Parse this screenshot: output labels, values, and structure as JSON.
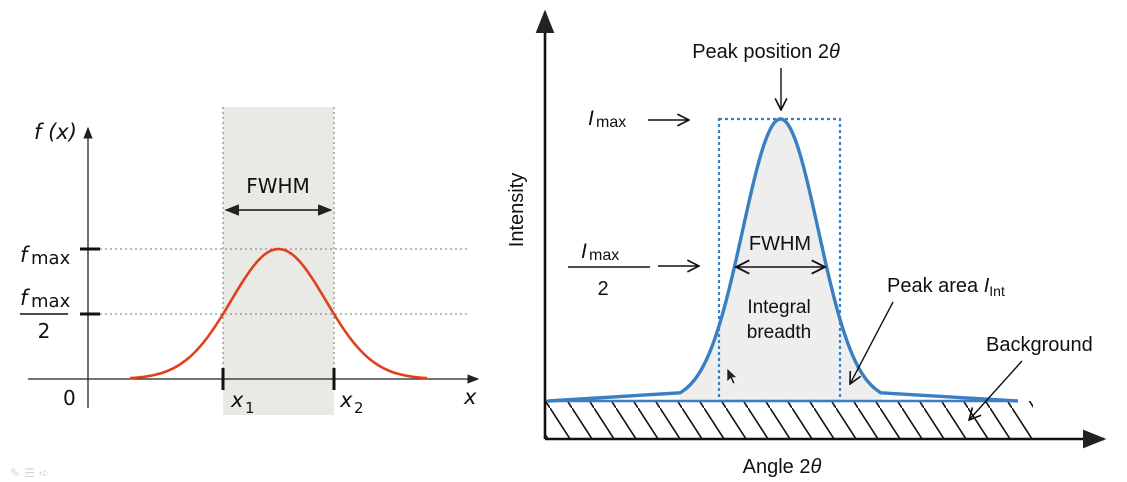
{
  "left_diagram": {
    "y_axis_label": "f (x)",
    "x_axis_label": "x",
    "origin_label": "0",
    "fmax_label": {
      "base": "f",
      "sub": "max"
    },
    "half_max_label": {
      "base": "f",
      "sub": "max",
      "denominator": "2"
    },
    "fwhm_label": "FWHM",
    "x1_label": {
      "base": "x",
      "sub": "1"
    },
    "x2_label": {
      "base": "x",
      "sub": "2"
    },
    "colors": {
      "curve": "#e0401a",
      "shade": "#e9e9e6",
      "axis": "#222222",
      "dotted": "#777777"
    }
  },
  "right_diagram": {
    "y_axis_label": "Intensity",
    "x_axis_label": {
      "text": "Angle 2",
      "symbol": "θ"
    },
    "peak_position_label": {
      "text": "Peak position 2",
      "symbol": "θ"
    },
    "imax_label": {
      "base": "I",
      "sub": "max"
    },
    "half_imax_label": {
      "base": "I",
      "sub": "max",
      "denominator": "2"
    },
    "fwhm_label": "FWHM",
    "integral_breadth_line1": "Integral",
    "integral_breadth_line2": "breadth",
    "peak_area_label": {
      "text": "Peak area ",
      "base": "I",
      "sub": "Int"
    },
    "background_label": "Background",
    "colors": {
      "curve": "#3a7fc1",
      "rect": "#3a7fc1",
      "fill": "#eeeeee",
      "hatch": "#111111"
    }
  },
  "corner_icons": [
    "pencil-icon",
    "menu-icon",
    "arrow-icon"
  ]
}
